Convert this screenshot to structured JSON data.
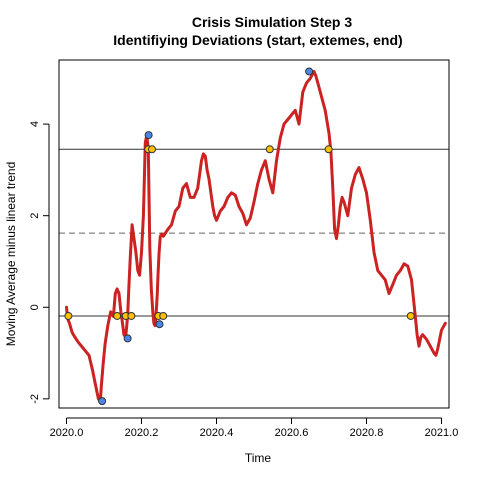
{
  "chart_data": {
    "type": "line",
    "title": "Crisis Simulation Step 3",
    "subtitle": "Identifiying Deviations (start, extemes, end)",
    "xlabel": "Time",
    "ylabel": "Moving Average minus linear trend",
    "xlim": [
      -0.02,
      1.02
    ],
    "ylim": [
      -2.2,
      5.4
    ],
    "x_offset": 2020,
    "x_ticks": [
      0,
      0.2,
      0.4,
      0.6,
      0.8,
      1.0
    ],
    "x_tick_labels": [
      "2020.0",
      "2020.2",
      "2020.4",
      "2020.6",
      "2020.8",
      "2021.0"
    ],
    "y_ticks": [
      -2,
      0,
      2,
      4
    ],
    "y_tick_labels": [
      "-2",
      "0",
      "2",
      "4"
    ],
    "hlines": [
      {
        "y": 3.45,
        "style": "solid"
      },
      {
        "y": 1.62,
        "style": "dashed"
      },
      {
        "y": -0.19,
        "style": "solid"
      }
    ],
    "series": [
      {
        "color": "#cc2222",
        "x": [
          0.0,
          0.003,
          0.008,
          0.015,
          0.022,
          0.03,
          0.04,
          0.05,
          0.06,
          0.07,
          0.075,
          0.08,
          0.085,
          0.09,
          0.093,
          0.098,
          0.103,
          0.11,
          0.118,
          0.125,
          0.13,
          0.135,
          0.14,
          0.145,
          0.15,
          0.153,
          0.158,
          0.163,
          0.166,
          0.17,
          0.175,
          0.18,
          0.185,
          0.19,
          0.195,
          0.2,
          0.205,
          0.21,
          0.214,
          0.218,
          0.222,
          0.226,
          0.23,
          0.233,
          0.236,
          0.238,
          0.24,
          0.242,
          0.244,
          0.247,
          0.25,
          0.254,
          0.258,
          0.262,
          0.266,
          0.27,
          0.28,
          0.29,
          0.3,
          0.31,
          0.32,
          0.33,
          0.34,
          0.35,
          0.355,
          0.36,
          0.365,
          0.37,
          0.375,
          0.38,
          0.385,
          0.39,
          0.395,
          0.4,
          0.41,
          0.42,
          0.43,
          0.44,
          0.45,
          0.46,
          0.47,
          0.48,
          0.49,
          0.5,
          0.51,
          0.52,
          0.53,
          0.54,
          0.55,
          0.56,
          0.57,
          0.58,
          0.59,
          0.6,
          0.61,
          0.62,
          0.63,
          0.64,
          0.65,
          0.66,
          0.665,
          0.67,
          0.68,
          0.69,
          0.7,
          0.705,
          0.71,
          0.715,
          0.72,
          0.725,
          0.73,
          0.735,
          0.74,
          0.75,
          0.76,
          0.77,
          0.78,
          0.79,
          0.8,
          0.81,
          0.82,
          0.83,
          0.84,
          0.85,
          0.86,
          0.87,
          0.88,
          0.89,
          0.9,
          0.91,
          0.92,
          0.93,
          0.935,
          0.94,
          0.945,
          0.95,
          0.96,
          0.97,
          0.98,
          0.985,
          0.99,
          1.0,
          1.01
        ],
        "y": [
          0.0,
          -0.25,
          -0.35,
          -0.55,
          -0.65,
          -0.75,
          -0.85,
          -0.95,
          -1.05,
          -1.4,
          -1.6,
          -1.8,
          -2.0,
          -2.05,
          -1.7,
          -1.2,
          -0.8,
          -0.4,
          -0.1,
          -0.2,
          0.3,
          0.4,
          0.3,
          -0.1,
          -0.4,
          -0.6,
          -0.65,
          -0.2,
          0.4,
          1.1,
          1.8,
          1.5,
          1.2,
          0.8,
          0.7,
          1.2,
          2.0,
          3.6,
          3.75,
          3.45,
          1.3,
          0.4,
          -0.1,
          -0.35,
          -0.4,
          -0.25,
          0.0,
          0.3,
          0.7,
          1.2,
          1.55,
          1.6,
          1.55,
          1.6,
          1.65,
          1.7,
          1.8,
          2.1,
          2.2,
          2.6,
          2.7,
          2.4,
          2.4,
          2.6,
          2.9,
          3.2,
          3.35,
          3.3,
          3.0,
          2.8,
          2.5,
          2.2,
          2.0,
          1.9,
          2.1,
          2.2,
          2.4,
          2.5,
          2.45,
          2.2,
          2.05,
          1.8,
          1.95,
          2.3,
          2.7,
          3.0,
          3.2,
          2.8,
          2.5,
          3.2,
          3.7,
          4.0,
          4.1,
          4.2,
          4.3,
          4.0,
          4.7,
          4.9,
          5.0,
          5.15,
          5.05,
          4.9,
          4.6,
          4.3,
          3.8,
          3.4,
          2.6,
          1.7,
          1.5,
          1.8,
          2.2,
          2.4,
          2.3,
          2.0,
          2.6,
          2.9,
          3.05,
          2.8,
          2.5,
          1.9,
          1.2,
          0.8,
          0.7,
          0.6,
          0.3,
          0.5,
          0.7,
          0.8,
          0.95,
          0.9,
          0.6,
          -0.2,
          -0.6,
          -0.85,
          -0.65,
          -0.6,
          -0.7,
          -0.85,
          -1.0,
          -1.05,
          -0.9,
          -0.5,
          -0.35
        ]
      }
    ],
    "marked_points": [
      {
        "x": 0.005,
        "y": -0.19,
        "kind": "crossing"
      },
      {
        "x": 0.095,
        "y": -2.05,
        "kind": "extreme"
      },
      {
        "x": 0.135,
        "y": -0.19,
        "kind": "crossing"
      },
      {
        "x": 0.158,
        "y": -0.19,
        "kind": "crossing"
      },
      {
        "x": 0.163,
        "y": -0.68,
        "kind": "extreme"
      },
      {
        "x": 0.173,
        "y": -0.19,
        "kind": "crossing"
      },
      {
        "x": 0.218,
        "y": 3.45,
        "kind": "crossing"
      },
      {
        "x": 0.219,
        "y": 3.76,
        "kind": "extreme"
      },
      {
        "x": 0.228,
        "y": 3.45,
        "kind": "crossing"
      },
      {
        "x": 0.245,
        "y": -0.19,
        "kind": "crossing"
      },
      {
        "x": 0.248,
        "y": -0.37,
        "kind": "extreme"
      },
      {
        "x": 0.258,
        "y": -0.19,
        "kind": "crossing"
      },
      {
        "x": 0.542,
        "y": 3.45,
        "kind": "crossing"
      },
      {
        "x": 0.647,
        "y": 5.15,
        "kind": "extreme"
      },
      {
        "x": 0.699,
        "y": 3.45,
        "kind": "crossing"
      },
      {
        "x": 0.918,
        "y": -0.19,
        "kind": "crossing"
      }
    ],
    "colors": {
      "line": "#cc2222",
      "crossing_fill": "#ffc000",
      "extreme_fill": "#4a86e8",
      "marker_stroke": "#333333",
      "hline_solid": "#333333",
      "hline_dashed": "#666666"
    },
    "grid": false,
    "legend": "none"
  }
}
